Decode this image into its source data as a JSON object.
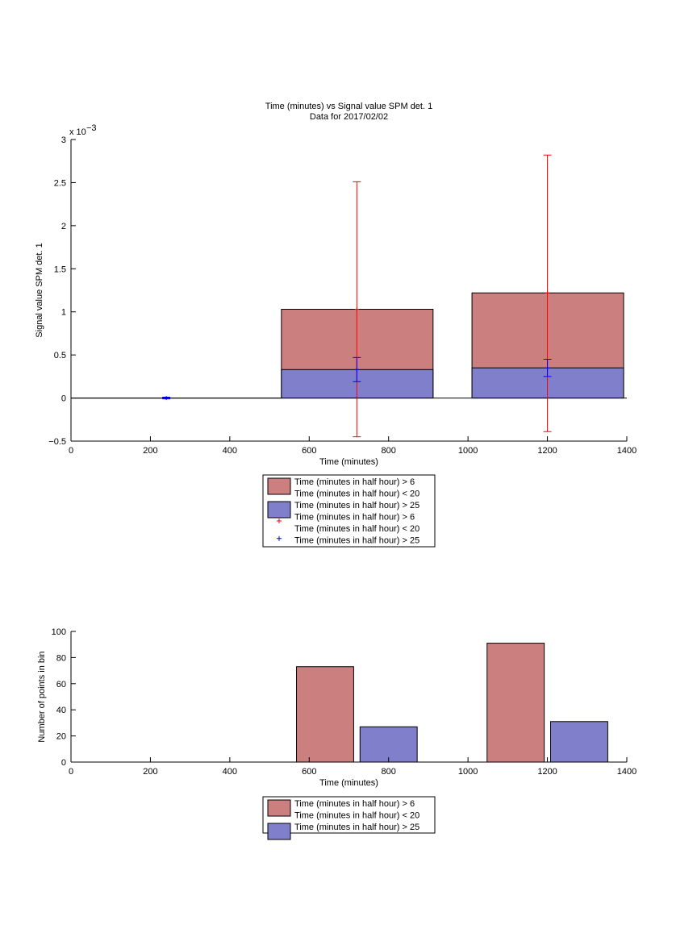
{
  "chart_data": [
    {
      "type": "bar",
      "title": "Time (minutes) vs Signal value SPM det. 1",
      "subtitle": "Data for 2017/02/02",
      "xlabel": "Time (minutes)",
      "ylabel": "Signal value SPM det. 1",
      "y_multiplier": "x 10",
      "y_multiplier_exp": "−3",
      "xlim": [
        0,
        1400
      ],
      "ylim": [
        -0.5,
        3
      ],
      "x_ticks": [
        "0",
        "200",
        "400",
        "600",
        "800",
        "1000",
        "1200",
        "1400"
      ],
      "y_ticks": [
        "−0.5",
        "0",
        "0.5",
        "1",
        "1.5",
        "2",
        "2.5",
        "3"
      ],
      "grid": false,
      "legend_position": "bottom",
      "series": [
        {
          "name": "Time (minutes in half hour) > 6\nTime (minutes in half hour) < 20",
          "color": "#cc7f7f",
          "kind": "bar",
          "bars": [
            {
              "x0": 0,
              "x1": 240,
              "y": 0
            },
            {
              "x0": 240,
              "x1": 530,
              "y": 0
            },
            {
              "x0": 530,
              "x1": 912,
              "y": 1.03
            },
            {
              "x0": 1010,
              "x1": 1392,
              "y": 1.22
            }
          ]
        },
        {
          "name": "Time (minutes in half hour) > 25",
          "color": "#7f7fcc",
          "kind": "bar",
          "bars": [
            {
              "x0": 0,
              "x1": 240,
              "y": 0
            },
            {
              "x0": 240,
              "x1": 530,
              "y": 0
            },
            {
              "x0": 530,
              "x1": 912,
              "y": 0.33
            },
            {
              "x0": 1010,
              "x1": 1392,
              "y": 0.35
            }
          ]
        },
        {
          "name": "Time (minutes in half hour) > 6\nTime (minutes in half hour) < 20",
          "color": "#ff0000",
          "kind": "errorbar",
          "marker": "+",
          "points": [
            {
              "x": 720,
              "y": 1.03,
              "low": -0.45,
              "high": 2.51
            },
            {
              "x": 1200,
              "y": 1.22,
              "low": -0.39,
              "high": 2.82
            }
          ]
        },
        {
          "name": "Time (minutes in half hour) > 25",
          "color": "#0000ff",
          "kind": "errorbar",
          "marker": "+",
          "points": [
            {
              "x": 240,
              "y": 0,
              "low": -0.01,
              "high": 0.01
            },
            {
              "x": 720,
              "y": 0.33,
              "low": 0.19,
              "high": 0.47
            },
            {
              "x": 1200,
              "y": 0.35,
              "low": 0.25,
              "high": 0.45
            }
          ]
        }
      ]
    },
    {
      "type": "bar",
      "xlabel": "Time (minutes)",
      "ylabel": "Number of points in bin",
      "xlim": [
        0,
        1400
      ],
      "ylim": [
        0,
        100
      ],
      "x_ticks": [
        "0",
        "200",
        "400",
        "600",
        "800",
        "1000",
        "1200",
        "1400"
      ],
      "y_ticks": [
        "0",
        "20",
        "40",
        "60",
        "80",
        "100"
      ],
      "grid": false,
      "legend_position": "bottom",
      "series": [
        {
          "name": "Time (minutes in half hour) > 6\nTime (minutes in half hour) < 20",
          "color": "#cc7f7f",
          "bars": [
            {
              "x0": 568,
              "x1": 712,
              "y": 73
            },
            {
              "x0": 1048,
              "x1": 1192,
              "y": 91
            }
          ]
        },
        {
          "name": "Time (minutes in half hour) > 25",
          "color": "#7f7fcc",
          "bars": [
            {
              "x0": 728,
              "x1": 872,
              "y": 27
            },
            {
              "x0": 1208,
              "x1": 1352,
              "y": 31
            }
          ]
        }
      ]
    }
  ]
}
